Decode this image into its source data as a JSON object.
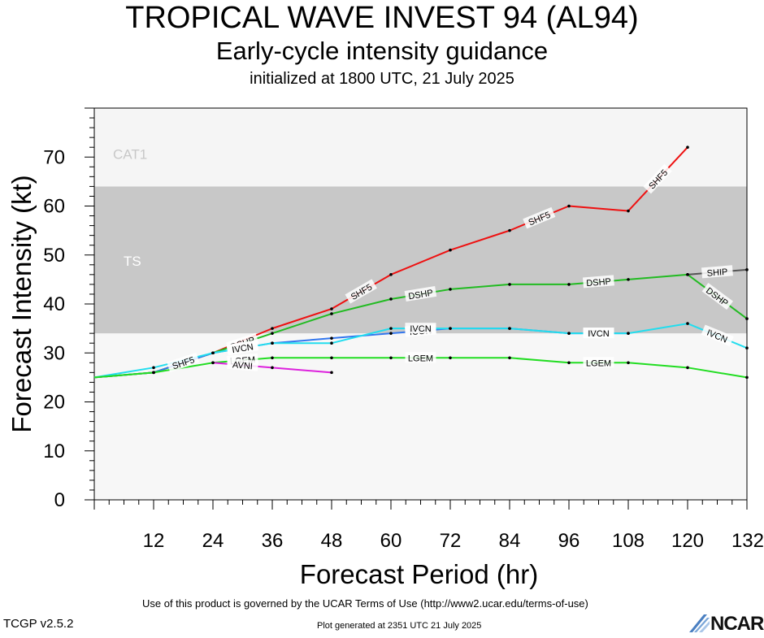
{
  "header": {
    "title": "TROPICAL WAVE INVEST 94 (AL94)",
    "subtitle": "Early-cycle intensity guidance",
    "init": "initialized at 1800 UTC, 21 July 2025"
  },
  "footer": {
    "terms": "Use of this product is governed by the UCAR Terms of Use (http://www2.ucar.edu/terms-of-use)",
    "version": "TCGP v2.5.2",
    "generated": "Plot generated at 2351 UTC   21 July 2025",
    "logo": "NCAR"
  },
  "chart_data": {
    "type": "line",
    "xlabel": "Forecast Period (hr)",
    "ylabel": "Forecast Intensity (kt)",
    "xlim": [
      0,
      132
    ],
    "ylim": [
      0,
      80
    ],
    "xticks": [
      12,
      24,
      36,
      48,
      60,
      72,
      84,
      96,
      108,
      120,
      132
    ],
    "yticks": [
      0,
      10,
      20,
      30,
      40,
      50,
      60,
      70
    ],
    "bands": [
      {
        "name": "TS",
        "from": 34,
        "to": 64,
        "color": "#c8c8c8"
      },
      {
        "name": "CAT1",
        "from": 64,
        "to": 80,
        "color": "#f5f5f5"
      }
    ],
    "series": [
      {
        "name": "SHF5",
        "color": "#ee1111",
        "x": [
          0,
          12,
          24,
          36,
          48,
          60,
          72,
          84,
          96,
          108,
          120
        ],
        "y": [
          25,
          26,
          30,
          35,
          39,
          46,
          51,
          55,
          60,
          59,
          72
        ]
      },
      {
        "name": "DSHP",
        "color": "#22bb22",
        "x": [
          0,
          12,
          24,
          36,
          48,
          60,
          72,
          84,
          96,
          108,
          120,
          132
        ],
        "y": [
          25,
          26,
          30,
          34,
          38,
          41,
          43,
          44,
          44,
          45,
          46,
          37
        ]
      },
      {
        "name": "SHIP",
        "color": "#555555",
        "x": [
          120,
          132
        ],
        "y": [
          46,
          47
        ]
      },
      {
        "name": "ICON",
        "color": "#3377ee",
        "x": [
          0,
          12,
          24,
          36,
          48,
          60,
          72,
          84,
          96,
          108
        ],
        "y": [
          25,
          26,
          30,
          32,
          33,
          34,
          35,
          35,
          34,
          34
        ]
      },
      {
        "name": "IVCN",
        "color": "#22ddee",
        "x": [
          0,
          12,
          24,
          36,
          48,
          60,
          72,
          84,
          96,
          108,
          120,
          132
        ],
        "y": [
          25,
          27,
          30,
          32,
          32,
          35,
          35,
          35,
          34,
          34,
          36,
          31
        ]
      },
      {
        "name": "LGEM",
        "color": "#22dd22",
        "x": [
          0,
          12,
          24,
          36,
          48,
          60,
          72,
          84,
          96,
          108,
          120,
          132
        ],
        "y": [
          25,
          26,
          28,
          29,
          29,
          29,
          29,
          29,
          28,
          28,
          27,
          25
        ]
      },
      {
        "name": "AVNI",
        "color": "#dd22dd",
        "x": [
          24,
          36,
          48
        ],
        "y": [
          28,
          27,
          26
        ]
      }
    ]
  }
}
